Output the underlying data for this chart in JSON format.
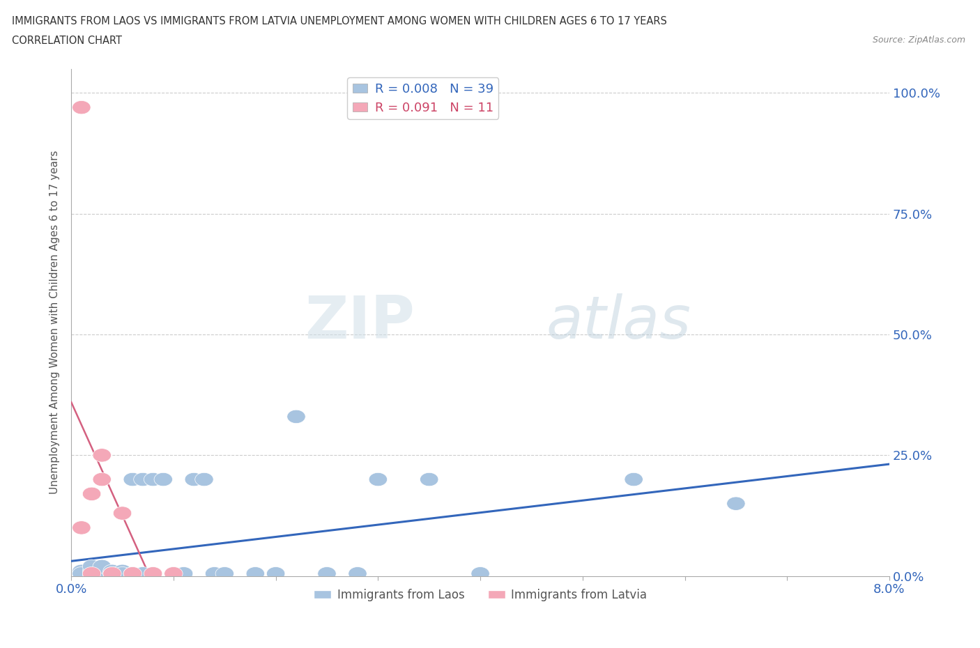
{
  "title_line1": "IMMIGRANTS FROM LAOS VS IMMIGRANTS FROM LATVIA UNEMPLOYMENT AMONG WOMEN WITH CHILDREN AGES 6 TO 17 YEARS",
  "title_line2": "CORRELATION CHART",
  "source": "Source: ZipAtlas.com",
  "ylabel": "Unemployment Among Women with Children Ages 6 to 17 years",
  "xlim": [
    0.0,
    0.08
  ],
  "ylim": [
    0.0,
    1.05
  ],
  "grid_color": "#cccccc",
  "background_color": "#ffffff",
  "laos_color": "#a8c4e0",
  "latvia_color": "#f4a8b8",
  "laos_line_color": "#3366bb",
  "latvia_line_color": "#d46080",
  "legend_R_laos": "0.008",
  "legend_N_laos": "39",
  "legend_R_latvia": "0.091",
  "legend_N_latvia": "11",
  "laos_x": [
    0.001,
    0.001,
    0.001,
    0.002,
    0.002,
    0.002,
    0.002,
    0.003,
    0.003,
    0.003,
    0.003,
    0.004,
    0.004,
    0.004,
    0.005,
    0.005,
    0.005,
    0.006,
    0.006,
    0.007,
    0.007,
    0.008,
    0.009,
    0.01,
    0.011,
    0.012,
    0.013,
    0.014,
    0.015,
    0.018,
    0.02,
    0.022,
    0.025,
    0.028,
    0.03,
    0.035,
    0.04,
    0.055,
    0.065
  ],
  "laos_y": [
    0.005,
    0.01,
    0.005,
    0.005,
    0.01,
    0.005,
    0.02,
    0.005,
    0.01,
    0.005,
    0.02,
    0.005,
    0.01,
    0.005,
    0.005,
    0.01,
    0.005,
    0.005,
    0.2,
    0.005,
    0.2,
    0.2,
    0.2,
    0.005,
    0.005,
    0.2,
    0.2,
    0.005,
    0.005,
    0.005,
    0.005,
    0.33,
    0.005,
    0.005,
    0.2,
    0.2,
    0.005,
    0.2,
    0.15
  ],
  "latvia_x": [
    0.001,
    0.001,
    0.002,
    0.002,
    0.003,
    0.003,
    0.004,
    0.005,
    0.006,
    0.008,
    0.01
  ],
  "latvia_y": [
    0.97,
    0.1,
    0.005,
    0.17,
    0.2,
    0.25,
    0.005,
    0.13,
    0.005,
    0.005,
    0.005
  ],
  "watermark": "ZIPatlas",
  "watermark_color": "#c8d8e8",
  "laos_trend": [
    -0.5,
    0.058
  ],
  "latvia_trend": [
    80.0,
    0.06
  ]
}
